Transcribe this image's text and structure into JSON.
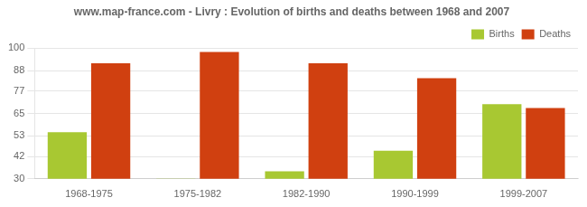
{
  "chart_data": {
    "type": "bar",
    "title": "www.map-france.com - Livry : Evolution of births and deaths between 1968 and 2007",
    "categories": [
      "1968-1975",
      "1975-1982",
      "1982-1990",
      "1990-1999",
      "1999-2007"
    ],
    "series": [
      {
        "name": "Births",
        "color": "#a8c832",
        "values": [
          55,
          30,
          34,
          45,
          70
        ]
      },
      {
        "name": "Deaths",
        "color": "#d04010",
        "values": [
          92,
          98,
          92,
          84,
          68
        ]
      }
    ],
    "ylim": [
      30,
      100
    ],
    "yticks": [
      30,
      42,
      53,
      65,
      77,
      88,
      100
    ],
    "grid": true,
    "legend": "upper right"
  }
}
